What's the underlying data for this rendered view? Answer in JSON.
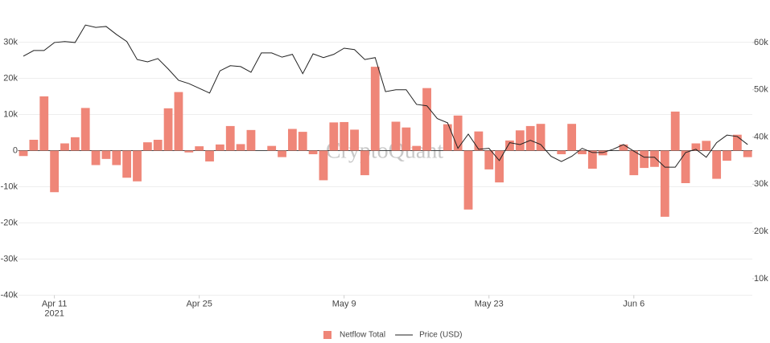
{
  "chart_data": {
    "type": "bar-line",
    "watermark": "CryptoQuant",
    "x": [
      "2021-04-08",
      "2021-04-09",
      "2021-04-10",
      "2021-04-11",
      "2021-04-12",
      "2021-04-13",
      "2021-04-14",
      "2021-04-15",
      "2021-04-16",
      "2021-04-17",
      "2021-04-18",
      "2021-04-19",
      "2021-04-20",
      "2021-04-21",
      "2021-04-22",
      "2021-04-23",
      "2021-04-24",
      "2021-04-25",
      "2021-04-26",
      "2021-04-27",
      "2021-04-28",
      "2021-04-29",
      "2021-04-30",
      "2021-05-01",
      "2021-05-02",
      "2021-05-03",
      "2021-05-04",
      "2021-05-05",
      "2021-05-06",
      "2021-05-07",
      "2021-05-08",
      "2021-05-09",
      "2021-05-10",
      "2021-05-11",
      "2021-05-12",
      "2021-05-13",
      "2021-05-14",
      "2021-05-15",
      "2021-05-16",
      "2021-05-17",
      "2021-05-18",
      "2021-05-19",
      "2021-05-20",
      "2021-05-21",
      "2021-05-22",
      "2021-05-23",
      "2021-05-24",
      "2021-05-25",
      "2021-05-26",
      "2021-05-27",
      "2021-05-28",
      "2021-05-29",
      "2021-05-30",
      "2021-05-31",
      "2021-06-01",
      "2021-06-02",
      "2021-06-03",
      "2021-06-04",
      "2021-06-05",
      "2021-06-06",
      "2021-06-07",
      "2021-06-08",
      "2021-06-09",
      "2021-06-10",
      "2021-06-11",
      "2021-06-12",
      "2021-06-13",
      "2021-06-14",
      "2021-06-15",
      "2021-06-16",
      "2021-06-17"
    ],
    "xticks": [
      {
        "value": "2021-04-11",
        "label": "Apr 11"
      },
      {
        "value": "2021-04-25",
        "label": "Apr 25"
      },
      {
        "value": "2021-05-09",
        "label": "May 9"
      },
      {
        "value": "2021-05-23",
        "label": "May 23"
      },
      {
        "value": "2021-06-06",
        "label": "Jun 6"
      }
    ],
    "x_year_label": "2021",
    "series": [
      {
        "name": "Netflow Total",
        "type": "bar",
        "color": "#ef8678",
        "values": [
          -1500,
          3000,
          15000,
          -11500,
          2000,
          3700,
          11800,
          -4000,
          -2300,
          -4000,
          -7500,
          -8500,
          2300,
          3000,
          11700,
          16200,
          -500,
          1200,
          -3000,
          1700,
          6800,
          1800,
          5700,
          0,
          1300,
          -1800,
          6000,
          5200,
          -1000,
          -8200,
          7800,
          7900,
          5800,
          -6800,
          23200,
          0,
          8000,
          6400,
          1300,
          17300,
          0,
          7300,
          9700,
          -16300,
          5300,
          -5200,
          -8800,
          2800,
          5600,
          6800,
          7400,
          0,
          -1000,
          7400,
          -1000,
          -5000,
          -1300,
          0,
          1700,
          -6800,
          -4800,
          -4500,
          -18300,
          10800,
          -9000,
          2000,
          2700,
          -7800,
          -2800,
          4400,
          -1800
        ]
      },
      {
        "name": "Price (USD)",
        "type": "line",
        "axis": "y2",
        "color": "#222222",
        "values": [
          57100,
          58300,
          58300,
          60000,
          60200,
          60000,
          63700,
          63200,
          63400,
          61700,
          60200,
          56400,
          55900,
          56600,
          54400,
          52000,
          51300,
          50300,
          49300,
          54000,
          55100,
          54900,
          53700,
          57800,
          57800,
          56900,
          57500,
          53400,
          57600,
          56800,
          57500,
          58800,
          58500,
          56400,
          56800,
          49600,
          50000,
          50000,
          46900,
          46600,
          43900,
          43000,
          37600,
          40600,
          37400,
          37600,
          35000,
          38800,
          38400,
          39300,
          38400,
          35900,
          34800,
          35900,
          37600,
          36700,
          36700,
          37400,
          38400,
          37000,
          35700,
          35700,
          33600,
          33600,
          36700,
          37400,
          35700,
          38800,
          40400,
          40100,
          38400
        ]
      }
    ],
    "ylim": [
      -40000,
      35000
    ],
    "yticks": [
      {
        "value": -40000,
        "label": "-40k"
      },
      {
        "value": -30000,
        "label": "-30k"
      },
      {
        "value": -20000,
        "label": "-20k"
      },
      {
        "value": -10000,
        "label": "-10k"
      },
      0,
      {
        "value": 10000,
        "label": "10k"
      },
      {
        "value": 20000,
        "label": "20k"
      },
      {
        "value": 30000,
        "label": "30k"
      }
    ],
    "y2lim": [
      6500,
      63900
    ],
    "y2ticks": [
      {
        "value": 10000,
        "label": "10k"
      },
      {
        "value": 20000,
        "label": "20k"
      },
      {
        "value": 30000,
        "label": "30k"
      },
      {
        "value": 40000,
        "label": "40k"
      },
      {
        "value": 50000,
        "label": "50k"
      },
      {
        "value": 60000,
        "label": "60k"
      }
    ],
    "grid": true,
    "legend": "bottom"
  }
}
